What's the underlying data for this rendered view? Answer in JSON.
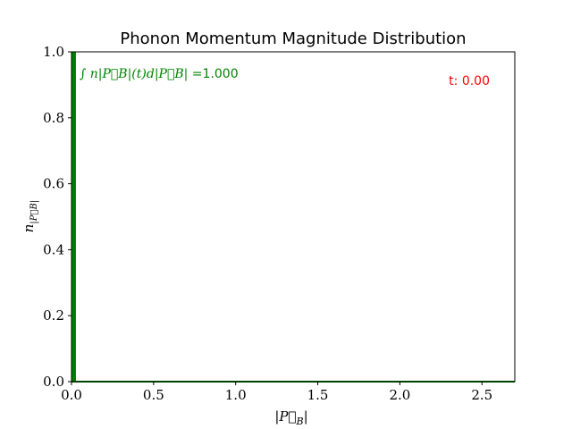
{
  "chart_data": {
    "type": "bar",
    "title": "Phonon Momentum Magnitude Distribution",
    "xlabel": "|P⃗B|",
    "xlabel_base": "|P⃗",
    "xlabel_sub": "B",
    "xlabel_close": "|",
    "ylabel": "n|P⃗B|",
    "ylabel_base": "n",
    "ylabel_sub": "|P⃗B|",
    "xlim": [
      0,
      2.7
    ],
    "ylim": [
      0,
      1.0
    ],
    "x_ticks": [
      0.0,
      0.5,
      1.0,
      1.5,
      2.0,
      2.5
    ],
    "x_tick_labels": [
      "0.0",
      "0.5",
      "1.0",
      "1.5",
      "2.0",
      "2.5"
    ],
    "y_ticks": [
      0.0,
      0.2,
      0.4,
      0.6,
      0.8,
      1.0
    ],
    "y_tick_labels": [
      "0.0",
      "0.2",
      "0.4",
      "0.6",
      "0.8",
      "1.0"
    ],
    "grid": false,
    "bar_color": "#008000",
    "bars": [
      {
        "x_start": 0.0,
        "x_end": 0.027,
        "value": 1.0
      }
    ],
    "annotations": [
      {
        "position": "top-left",
        "color": "#008000",
        "math": "∫ n|P⃗B|(t)d|P⃗B| =",
        "value": "1.000"
      },
      {
        "position": "top-right",
        "color": "#ff0000",
        "text": "t: 0.00"
      }
    ]
  }
}
